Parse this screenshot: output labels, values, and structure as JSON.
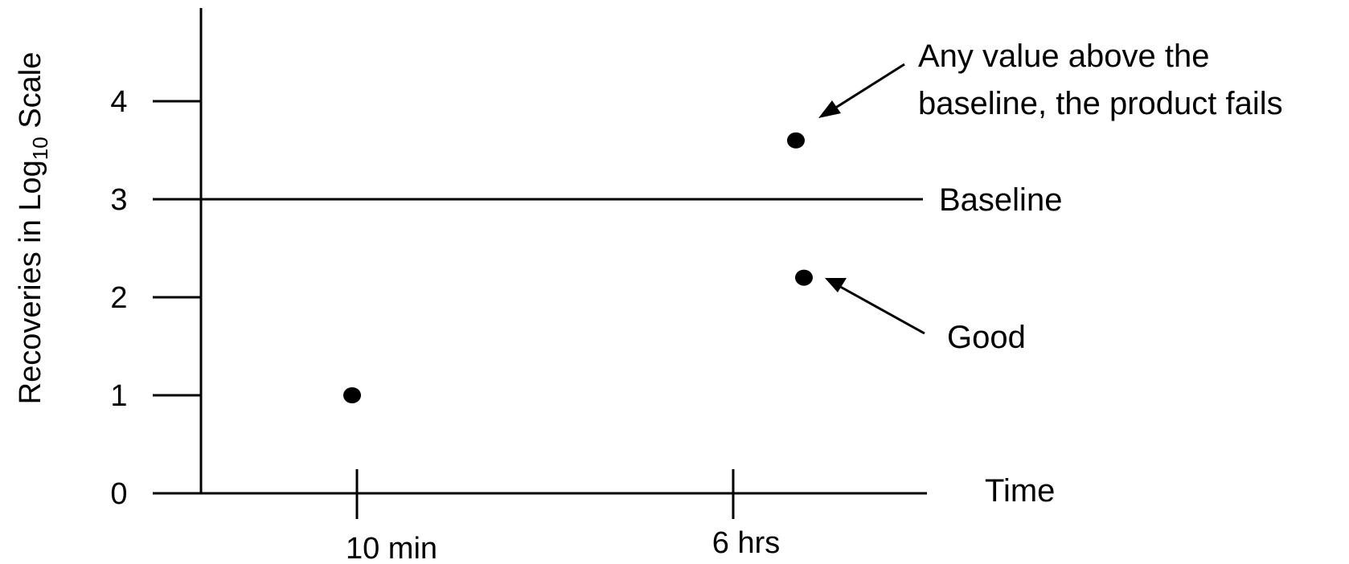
{
  "chart_data": {
    "type": "scatter",
    "ylabel": {
      "main": "Recoveries in Log",
      "subscript": "10",
      "suffix": " Scale"
    },
    "xlabel": "Time",
    "y_ticks": [
      "0",
      "1",
      "2",
      "3",
      "4"
    ],
    "ylim": [
      0,
      4.3
    ],
    "x_categories": [
      "10 min",
      "6 hrs"
    ],
    "baseline": {
      "value": 3,
      "label": "Baseline"
    },
    "points": [
      {
        "x": "10 min",
        "y": 1.0
      },
      {
        "x": "6 hrs",
        "y": 3.6
      },
      {
        "x": "6 hrs",
        "y": 2.2
      }
    ],
    "annotations": {
      "fail_line1": "Any value above the",
      "fail_line2": "baseline, the product fails",
      "good": "Good"
    },
    "grid": false,
    "colors": {
      "ink": "#000000",
      "background": "#ffffff"
    }
  }
}
